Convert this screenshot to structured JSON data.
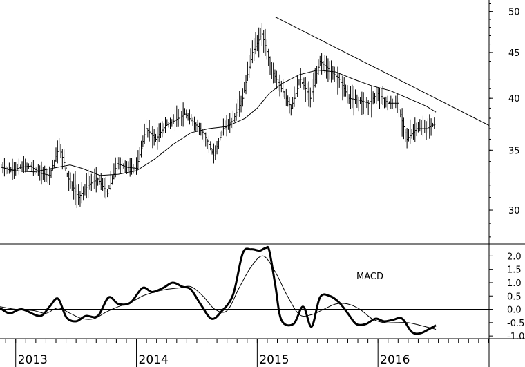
{
  "chart_data": [
    {
      "type": "line",
      "panel": "price",
      "scale": "log",
      "ylim": [
        27.5,
        51.5
      ],
      "yticks": [
        "30",
        "35",
        "40",
        "45",
        "50"
      ],
      "ytick_values": [
        30,
        35,
        40,
        45,
        50
      ],
      "xlim": [
        2012.87,
        2016.92
      ],
      "grid": false,
      "series": [
        {
          "style": "ohlc-bars",
          "x": [
            2012.88,
            2012.96,
            2013.04,
            2013.12,
            2013.2,
            2013.28,
            2013.36,
            2013.44,
            2013.52,
            2013.6,
            2013.68,
            2013.76,
            2013.84,
            2013.92,
            2014.0,
            2014.08,
            2014.16,
            2014.24,
            2014.32,
            2014.4,
            2014.48,
            2014.56,
            2014.64,
            2014.72,
            2014.8,
            2014.88,
            2014.96,
            2015.04,
            2015.12,
            2015.2,
            2015.28,
            2015.36,
            2015.44,
            2015.52,
            2015.6,
            2015.68,
            2015.76,
            2015.84,
            2015.92,
            2016.0,
            2016.08,
            2016.16,
            2016.24,
            2016.32,
            2016.4,
            2016.48
          ],
          "close": [
            33.5,
            33.2,
            33.5,
            33.6,
            33.0,
            32.8,
            35.3,
            32.5,
            31.0,
            32.0,
            32.5,
            31.3,
            33.8,
            33.5,
            33.4,
            37.0,
            36.0,
            37.3,
            37.8,
            38.4,
            37.5,
            36.5,
            34.5,
            37.0,
            37.8,
            40.0,
            45.0,
            47.2,
            43.0,
            41.0,
            39.0,
            42.0,
            40.0,
            44.0,
            43.0,
            42.0,
            40.0,
            39.8,
            39.5,
            40.5,
            39.5,
            39.5,
            36.0,
            37.0,
            37.0,
            37.5
          ],
          "high": [
            34.5,
            34.2,
            34.5,
            34.6,
            34.0,
            33.8,
            36.5,
            34.0,
            33.0,
            33.5,
            33.8,
            32.8,
            35.0,
            34.5,
            34.5,
            38.2,
            37.5,
            38.5,
            39.5,
            39.5,
            38.5,
            37.5,
            36.0,
            38.0,
            39.0,
            41.5,
            47.5,
            49.0,
            45.0,
            42.5,
            40.5,
            43.5,
            42.0,
            45.0,
            44.5,
            43.5,
            42.0,
            41.0,
            41.0,
            41.5,
            40.8,
            40.5,
            38.0,
            38.5,
            38.3,
            38.7
          ],
          "low": [
            32.5,
            32.3,
            32.5,
            32.6,
            32.0,
            31.8,
            33.5,
            31.0,
            29.5,
            30.5,
            31.5,
            30.5,
            32.5,
            32.5,
            32.5,
            35.5,
            34.5,
            36.0,
            36.5,
            37.0,
            36.5,
            35.0,
            32.5,
            36.0,
            36.5,
            38.5,
            43.0,
            44.5,
            41.5,
            39.0,
            37.5,
            40.0,
            38.0,
            42.0,
            41.0,
            40.0,
            38.5,
            37.5,
            37.0,
            38.5,
            38.0,
            37.5,
            34.8,
            35.5,
            35.5,
            36.3
          ]
        },
        {
          "style": "moving-average",
          "x": [
            2012.88,
            2013.0,
            2013.15,
            2013.3,
            2013.45,
            2013.55,
            2013.7,
            2013.85,
            2014.0,
            2014.15,
            2014.3,
            2014.45,
            2014.6,
            2014.75,
            2014.9,
            2015.0,
            2015.1,
            2015.2,
            2015.35,
            2015.5,
            2015.65,
            2015.8,
            2015.95,
            2016.1,
            2016.25,
            2016.4,
            2016.48
          ],
          "y": [
            33.5,
            33.2,
            33.1,
            33.4,
            33.7,
            33.4,
            32.8,
            32.9,
            33.2,
            34.2,
            35.5,
            36.6,
            37.0,
            37.2,
            38.0,
            39.0,
            40.5,
            41.5,
            42.5,
            43.0,
            42.8,
            42.0,
            41.3,
            40.8,
            40.0,
            39.2,
            38.6
          ]
        },
        {
          "style": "trendline",
          "x": [
            2015.15,
            2016.92
          ],
          "y": [
            49.3,
            37.3
          ]
        }
      ]
    },
    {
      "type": "line",
      "panel": "indicator",
      "title": "MACD",
      "ylim": [
        -1.1,
        2.45
      ],
      "yticks": [
        "2.0",
        "1.5",
        "1.0",
        "0.5",
        "0.0",
        "-0.5",
        "-1.0"
      ],
      "ytick_values": [
        2.0,
        1.5,
        1.0,
        0.5,
        0.0,
        -0.5,
        -1.0
      ],
      "zero_line": 0,
      "xlim": [
        2012.87,
        2016.92
      ],
      "xtick_labels": [
        "2013",
        "2014",
        "2015",
        "2016"
      ],
      "xtick_values": [
        2013.0,
        2014.0,
        2015.0,
        2016.0
      ],
      "series": [
        {
          "style": "macd-line",
          "x": [
            2012.87,
            2012.95,
            2013.05,
            2013.2,
            2013.28,
            2013.35,
            2013.42,
            2013.5,
            2013.58,
            2013.68,
            2013.77,
            2013.85,
            2013.95,
            2014.05,
            2014.13,
            2014.22,
            2014.3,
            2014.38,
            2014.45,
            2014.53,
            2014.62,
            2014.7,
            2014.8,
            2014.88,
            2014.95,
            2015.02,
            2015.07,
            2015.1,
            2015.15,
            2015.2,
            2015.3,
            2015.38,
            2015.45,
            2015.52,
            2015.6,
            2015.68,
            2015.75,
            2015.82,
            2015.9,
            2015.98,
            2016.05,
            2016.12,
            2016.2,
            2016.28,
            2016.35,
            2016.42,
            2016.48
          ],
          "y": [
            0.05,
            -0.15,
            0.0,
            -0.25,
            0.1,
            0.4,
            -0.3,
            -0.45,
            -0.25,
            -0.25,
            0.45,
            0.2,
            0.25,
            0.8,
            0.65,
            0.8,
            1.0,
            0.85,
            0.75,
            0.2,
            -0.35,
            -0.1,
            0.55,
            2.1,
            2.25,
            2.2,
            2.3,
            2.2,
            0.9,
            -0.4,
            -0.55,
            0.1,
            -0.65,
            0.45,
            0.5,
            0.25,
            -0.15,
            -0.55,
            -0.55,
            -0.35,
            -0.45,
            -0.4,
            -0.35,
            -0.85,
            -0.9,
            -0.75,
            -0.6
          ]
        },
        {
          "style": "signal-line",
          "x": [
            2012.87,
            2013.0,
            2013.15,
            2013.25,
            2013.35,
            2013.45,
            2013.55,
            2013.65,
            2013.75,
            2013.85,
            2013.95,
            2014.05,
            2014.15,
            2014.25,
            2014.35,
            2014.45,
            2014.55,
            2014.65,
            2014.75,
            2014.85,
            2014.95,
            2015.05,
            2015.15,
            2015.25,
            2015.35,
            2015.45,
            2015.55,
            2015.65,
            2015.75,
            2015.85,
            2015.95,
            2016.05,
            2016.15,
            2016.25,
            2016.35,
            2016.48
          ],
          "y": [
            0.1,
            0.0,
            -0.05,
            -0.15,
            0.05,
            -0.15,
            -0.35,
            -0.35,
            -0.1,
            0.1,
            0.25,
            0.5,
            0.65,
            0.75,
            0.8,
            0.85,
            0.5,
            0.0,
            -0.05,
            0.8,
            1.6,
            2.0,
            1.4,
            0.5,
            -0.2,
            -0.2,
            0.0,
            0.2,
            0.2,
            0.0,
            -0.35,
            -0.5,
            -0.5,
            -0.5,
            -0.6,
            -0.75
          ]
        }
      ]
    }
  ]
}
